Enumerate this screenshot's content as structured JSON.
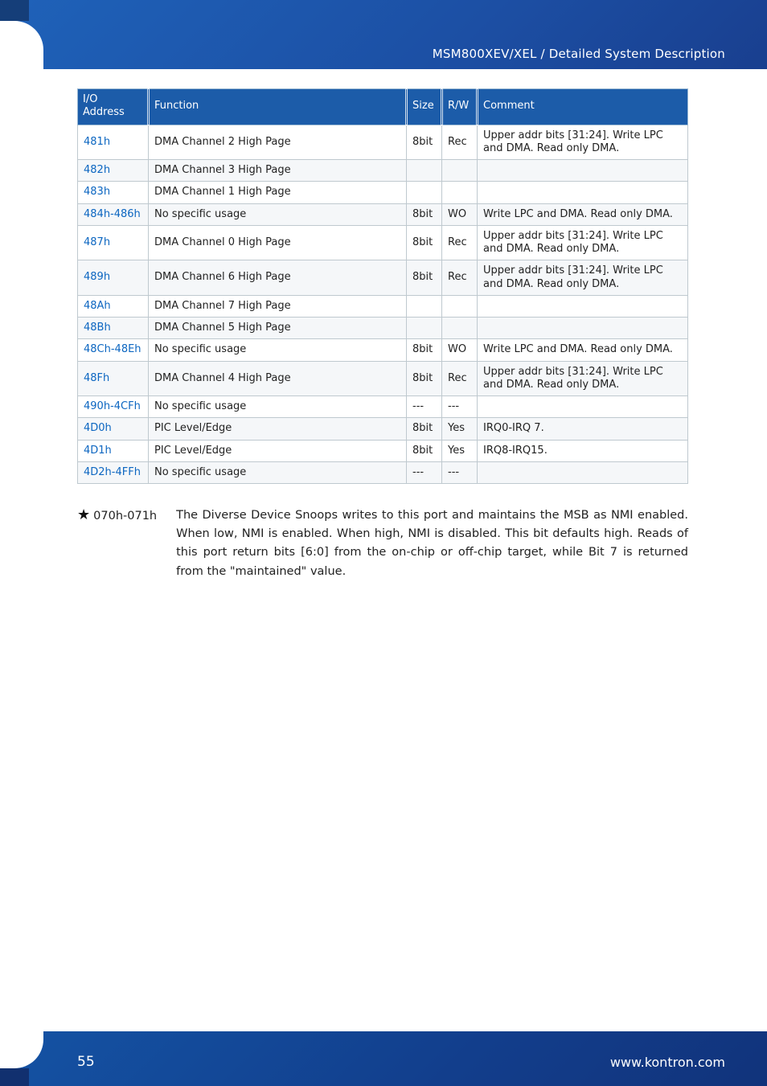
{
  "header": {
    "path": "MSM800XEV/XEL / Detailed System Description"
  },
  "table": {
    "headers": {
      "addr": "I/O Address",
      "func": "Function",
      "size": "Size",
      "rw": "R/W",
      "comm": "Comment"
    },
    "rows": [
      {
        "addr": "481h",
        "func": "DMA Channel 2 High Page",
        "size": "8bit",
        "rw": "Rec",
        "comm": "Upper addr bits [31:24]. Write LPC and DMA. Read only DMA."
      },
      {
        "addr": "482h",
        "func": "DMA Channel 3 High Page",
        "size": "",
        "rw": "",
        "comm": ""
      },
      {
        "addr": "483h",
        "func": "DMA Channel 1 High Page",
        "size": "",
        "rw": "",
        "comm": ""
      },
      {
        "addr": "484h-486h",
        "func": "No specific usage",
        "size": "8bit",
        "rw": "WO",
        "comm": "Write LPC and DMA. Read only DMA."
      },
      {
        "addr": "487h",
        "func": "DMA Channel 0 High Page",
        "size": "8bit",
        "rw": "Rec",
        "comm": "Upper addr bits [31:24]. Write LPC and DMA. Read only DMA."
      },
      {
        "addr": "489h",
        "func": "DMA Channel 6 High Page",
        "size": "8bit",
        "rw": "Rec",
        "comm": "Upper addr bits [31:24]. Write LPC and DMA. Read only DMA."
      },
      {
        "addr": "48Ah",
        "func": "DMA Channel 7 High Page",
        "size": "",
        "rw": "",
        "comm": ""
      },
      {
        "addr": "48Bh",
        "func": "DMA Channel 5 High Page",
        "size": "",
        "rw": "",
        "comm": ""
      },
      {
        "addr": "48Ch-48Eh",
        "func": "No specific usage",
        "size": "8bit",
        "rw": "WO",
        "comm": "Write LPC and DMA. Read only DMA."
      },
      {
        "addr": "48Fh",
        "func": "DMA Channel 4 High Page",
        "size": "8bit",
        "rw": "Rec",
        "comm": "Upper addr bits [31:24]. Write LPC and DMA. Read only DMA."
      },
      {
        "addr": "490h-4CFh",
        "func": "No specific usage",
        "size": "---",
        "rw": "---",
        "comm": ""
      },
      {
        "addr": "4D0h",
        "func": "PIC Level/Edge",
        "size": "8bit",
        "rw": "Yes",
        "comm": "IRQ0-IRQ 7."
      },
      {
        "addr": "4D1h",
        "func": "PIC Level/Edge",
        "size": "8bit",
        "rw": "Yes",
        "comm": "IRQ8-IRQ15."
      },
      {
        "addr": "4D2h-4FFh",
        "func": "No specific usage",
        "size": "---",
        "rw": "---",
        "comm": ""
      }
    ],
    "zebra_dark_rows": [
      1,
      3,
      5,
      7,
      9,
      11,
      13
    ]
  },
  "footnote": {
    "star": "★",
    "ref": "070h-071h",
    "body": "The Diverse Device Snoops writes to this port and maintains the MSB as NMI enabled. When low, NMI is enabled. When high, NMI is disabled. This bit defaults high. Reads of this port return bits [6:0] from the on-chip or off-chip target, while Bit 7 is returned from the \"maintained\" value."
  },
  "footer": {
    "page": "55",
    "site": "www.kontron.com"
  },
  "colors": {
    "header_bg_start": "#1F62B9",
    "header_bg_end": "#193F8F",
    "footer_bg_start": "#1453A4",
    "footer_bg_end": "#11337B",
    "th_bg": "#1C5CA9",
    "addr_text": "#0c66c1",
    "zebra_bg": "#f5f7f9",
    "cell_border": "#bfc9cf"
  }
}
